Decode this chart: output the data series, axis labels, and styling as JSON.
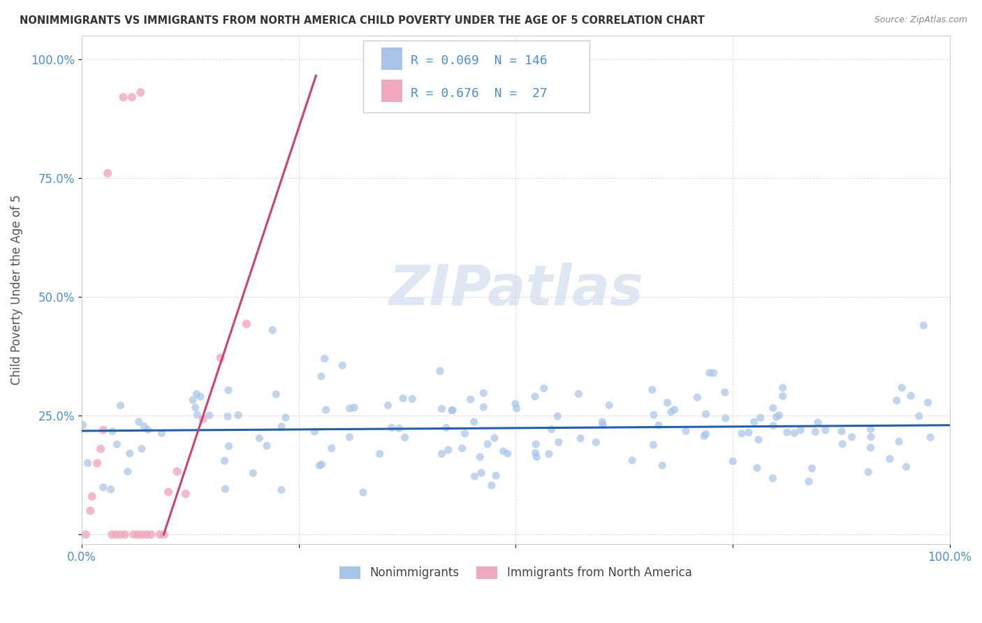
{
  "title": "NONIMMIGRANTS VS IMMIGRANTS FROM NORTH AMERICA CHILD POVERTY UNDER THE AGE OF 5 CORRELATION CHART",
  "source": "Source: ZipAtlas.com",
  "ylabel": "Child Poverty Under the Age of 5",
  "xlim": [
    0,
    1.0
  ],
  "ylim": [
    -0.02,
    1.05
  ],
  "xticks": [
    0.0,
    0.25,
    0.5,
    0.75,
    1.0
  ],
  "xticklabels": [
    "0.0%",
    "",
    "",
    "",
    "100.0%"
  ],
  "yticks": [
    0.0,
    0.25,
    0.5,
    0.75,
    1.0
  ],
  "yticklabels": [
    "",
    "25.0%",
    "50.0%",
    "75.0%",
    "100.0%"
  ],
  "blue_R": 0.069,
  "blue_N": 146,
  "pink_R": 0.676,
  "pink_N": 27,
  "blue_color": "#a8c4e8",
  "pink_color": "#f0a8bc",
  "blue_line_color": "#2060b0",
  "pink_line_color": "#d0406080",
  "watermark_color": "#c8d8ea",
  "legend_label_blue": "Nonimmigrants",
  "legend_label_pink": "Immigrants from North America",
  "tick_label_color": "#4a90d9",
  "legend_value_color": "#4a90d9",
  "grid_color": "#d8d8d8",
  "background_color": "#ffffff",
  "title_color": "#333333",
  "ylabel_color": "#555555",
  "source_color": "#888888",
  "blue_line_intercept": 0.218,
  "blue_line_slope": 0.012,
  "pink_line_intercept": -0.52,
  "pink_line_slope": 5.5
}
